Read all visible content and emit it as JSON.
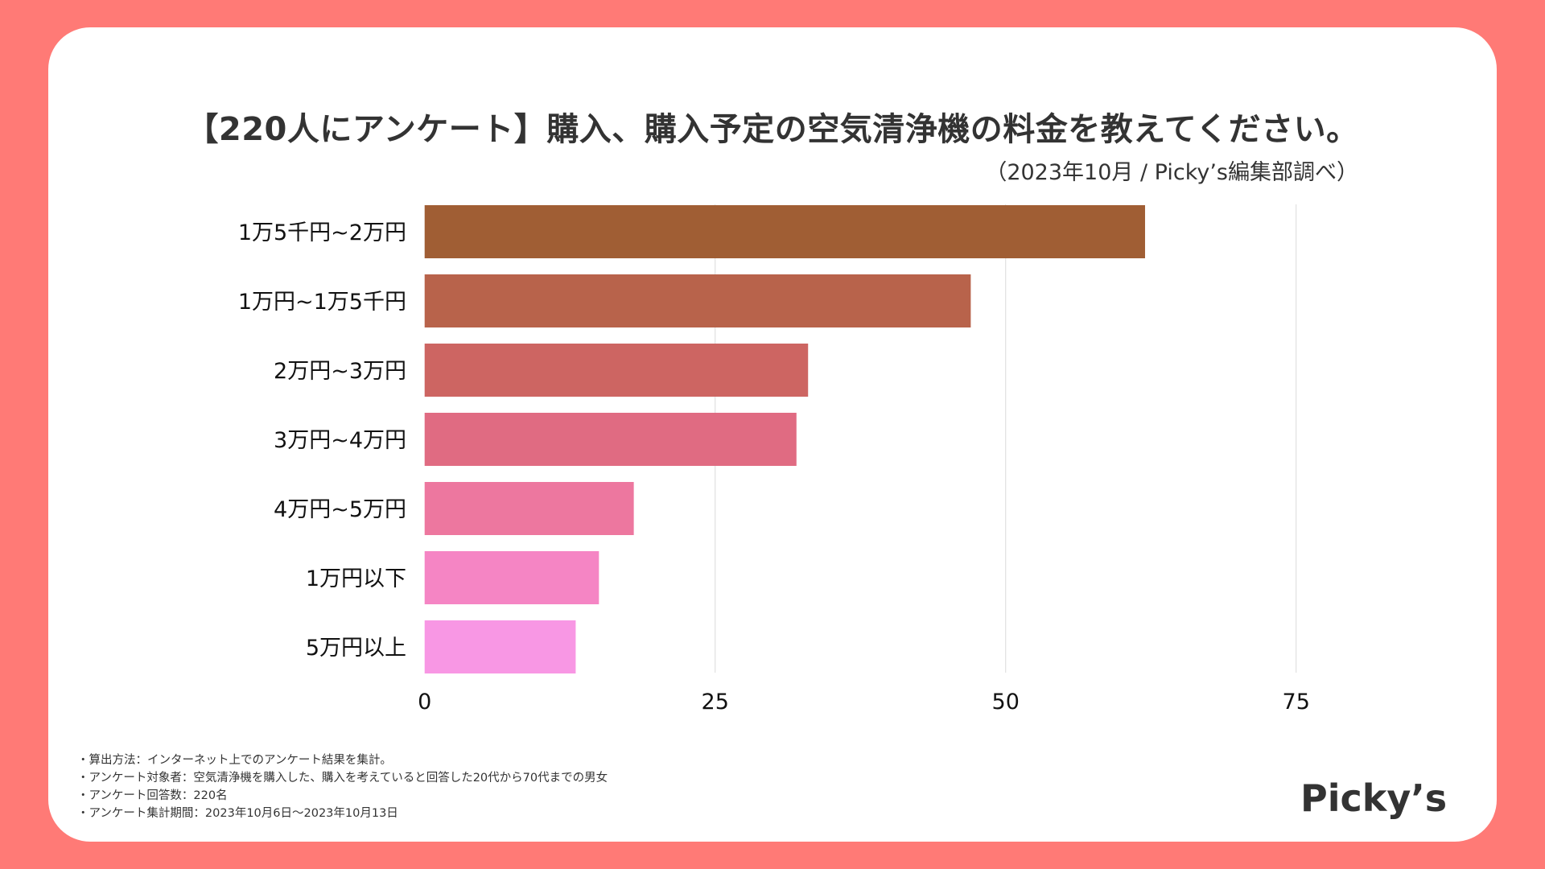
{
  "title": "【220人にアンケート】購入、購入予定の空気清浄機の料金を教えてください。",
  "subtitle": "（2023年10月 / Picky’s編集部調べ）",
  "chart_data": {
    "type": "bar",
    "orientation": "horizontal",
    "title": "【220人にアンケート】購入、購入予定の空気清浄機の料金を教えてください。",
    "subtitle": "（2023年10月 / Picky’s編集部調べ）",
    "categories": [
      "1万5千円~2万円",
      "1万円~1万5千円",
      "2万円~3万円",
      "3万円~4万円",
      "4万円~5万円",
      "1万円以下",
      "5万円以上"
    ],
    "values": [
      62,
      47,
      33,
      32,
      18,
      15,
      13
    ],
    "colors": [
      "#a05e34",
      "#b8634b",
      "#cd6562",
      "#e06b82",
      "#ed779f",
      "#f585c4",
      "#f897e4"
    ],
    "xlabel": "",
    "ylabel": "",
    "xlim": [
      0,
      90
    ],
    "xticks": [
      0,
      25,
      50,
      75
    ],
    "xtick_labels": [
      "0",
      "25",
      "50",
      "75"
    ],
    "grid": true,
    "legend": "none"
  },
  "notes": [
    "・算出方法：インターネット上でのアンケート結果を集計。",
    "・アンケート対象者：空気清浄機を購入した、購入を考えていると回答した20代から70代までの男女",
    "・アンケート回答数：220名",
    "・アンケート集計期間：2023年10月6日～2023年10月13日"
  ],
  "logo": "Picky’s",
  "colors": {
    "background": "#ff7a76",
    "card": "#ffffff",
    "text": "#333333",
    "grid": "#e0e0e0"
  }
}
